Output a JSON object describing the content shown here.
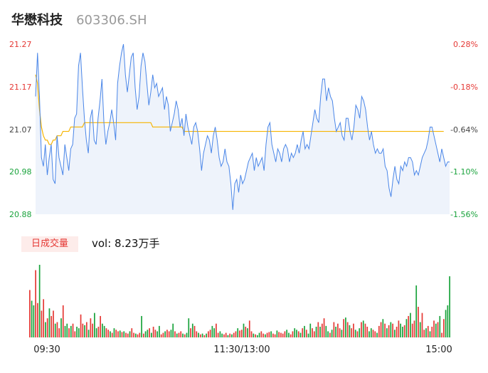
{
  "header": {
    "name": "华懋科技",
    "code": "603306.SH"
  },
  "volume": {
    "tab_label": "日成交量",
    "vol_text": "vol: 8.23万手"
  },
  "colors": {
    "price_line": "#4a86e8",
    "avg_line": "#f6b400",
    "up": "#e53935",
    "down": "#1aa33c",
    "fill": "#eef3fb"
  },
  "chart_data": {
    "type": "line",
    "price_axis": {
      "ticks": [
        21.27,
        21.17,
        21.07,
        20.98,
        20.88
      ],
      "min": 20.88,
      "max": 21.27
    },
    "pct_axis": {
      "ticks": [
        "0.28%",
        "-0.18%",
        "-0.64%",
        "-1.10%",
        "-1.56%"
      ]
    },
    "x_ticks": [
      "09:30",
      "11:30/13:00",
      "15:00"
    ],
    "series": [
      {
        "values": [
          21.15,
          21.25,
          21.15,
          21.01,
          20.99,
          21.04,
          20.97,
          21.01,
          21.04,
          20.96,
          20.95,
          21.06,
          21.01,
          20.99,
          20.97,
          21.04,
          21.01,
          20.98,
          21.03,
          21.04,
          21.1,
          21.11,
          21.22,
          21.25,
          21.17,
          21.1,
          21.05,
          21.02,
          21.1,
          21.12,
          21.05,
          21.04,
          21.1,
          21.14,
          21.19,
          21.09,
          21.04,
          21.07,
          21.09,
          21.12,
          21.09,
          21.05,
          21.18,
          21.22,
          21.25,
          21.27,
          21.2,
          21.16,
          21.2,
          21.24,
          21.25,
          21.17,
          21.12,
          21.15,
          21.22,
          21.25,
          21.23,
          21.18,
          21.13,
          21.16,
          21.2,
          21.17,
          21.18,
          21.15,
          21.16,
          21.17,
          21.12,
          21.15,
          21.13,
          21.07,
          21.09,
          21.11,
          21.14,
          21.12,
          21.08,
          21.1,
          21.06,
          21.11,
          21.08,
          21.06,
          21.04,
          21.08,
          21.09,
          21.07,
          21.03,
          20.98,
          21.02,
          21.04,
          21.06,
          21.05,
          21.02,
          21.06,
          21.08,
          21.05,
          21.01,
          20.99,
          21.0,
          21.03,
          21.0,
          20.99,
          20.95,
          20.89,
          20.95,
          20.96,
          20.93,
          20.97,
          20.95,
          20.96,
          20.98,
          21.0,
          21.01,
          21.02,
          20.98,
          21.01,
          20.99,
          21.0,
          21.01,
          20.98,
          21.04,
          21.08,
          21.09,
          21.04,
          21.02,
          21.0,
          21.03,
          21.02,
          21.0,
          21.03,
          21.04,
          21.03,
          21.0,
          21.02,
          21.01,
          21.02,
          21.04,
          21.02,
          21.05,
          21.07,
          21.03,
          21.04,
          21.03,
          21.06,
          21.09,
          21.12,
          21.1,
          21.09,
          21.15,
          21.19,
          21.19,
          21.14,
          21.17,
          21.15,
          21.14,
          21.1,
          21.07,
          21.08,
          21.09,
          21.06,
          21.05,
          21.1,
          21.1,
          21.07,
          21.05,
          21.08,
          21.13,
          21.12,
          21.1,
          21.15,
          21.14,
          21.12,
          21.08,
          21.05,
          21.07,
          21.04,
          21.02,
          21.03,
          21.02,
          21.02,
          21.03,
          20.99,
          20.98,
          20.94,
          20.92,
          20.96,
          20.99,
          20.96,
          20.95,
          20.99,
          20.98,
          21.0,
          20.99,
          21.01,
          21.01,
          21.0,
          20.97,
          20.98,
          20.97,
          20.99,
          21.01,
          21.02,
          21.03,
          21.05,
          21.08,
          21.08,
          21.06,
          21.04,
          21.02,
          21.0,
          21.03,
          21.01,
          20.99,
          21.0,
          21.0
        ]
      },
      {
        "values": [
          21.2,
          21.18,
          21.12,
          21.08,
          21.06,
          21.05,
          21.05,
          21.04,
          21.04,
          21.05,
          21.05,
          21.06,
          21.06,
          21.06,
          21.07,
          21.07,
          21.07,
          21.07,
          21.08,
          21.08,
          21.08,
          21.08,
          21.08,
          21.08,
          21.08,
          21.09,
          21.09,
          21.09,
          21.09,
          21.09,
          21.09,
          21.09,
          21.09,
          21.09,
          21.09,
          21.09,
          21.09,
          21.09,
          21.09,
          21.09,
          21.09,
          21.09,
          21.09,
          21.09,
          21.09,
          21.09,
          21.09,
          21.09,
          21.09,
          21.09,
          21.09,
          21.09,
          21.09,
          21.09,
          21.09,
          21.09,
          21.09,
          21.09,
          21.09,
          21.09,
          21.08,
          21.08,
          21.08,
          21.08,
          21.08,
          21.08,
          21.08,
          21.08,
          21.08,
          21.08,
          21.08,
          21.08,
          21.08,
          21.08,
          21.08,
          21.08,
          21.07,
          21.07,
          21.07,
          21.07,
          21.07,
          21.07,
          21.07,
          21.07,
          21.07,
          21.07,
          21.07,
          21.07,
          21.07,
          21.07,
          21.07,
          21.07,
          21.07,
          21.07,
          21.07,
          21.07,
          21.07,
          21.07,
          21.07,
          21.07,
          21.07,
          21.07,
          21.07,
          21.07,
          21.07,
          21.07,
          21.07,
          21.07,
          21.07,
          21.07,
          21.07,
          21.07,
          21.07,
          21.07,
          21.07,
          21.07,
          21.07,
          21.07,
          21.07,
          21.07,
          21.07,
          21.07,
          21.07,
          21.07,
          21.07,
          21.07,
          21.07,
          21.07,
          21.07,
          21.07,
          21.07,
          21.07,
          21.07,
          21.07,
          21.07,
          21.07,
          21.07,
          21.07,
          21.07,
          21.07,
          21.07,
          21.07,
          21.07,
          21.07,
          21.07,
          21.07,
          21.07,
          21.07,
          21.07,
          21.07,
          21.07,
          21.07,
          21.07,
          21.07,
          21.07,
          21.07,
          21.07,
          21.07,
          21.07,
          21.07,
          21.07,
          21.07,
          21.07,
          21.07,
          21.07,
          21.07,
          21.07,
          21.07,
          21.07,
          21.07,
          21.07,
          21.07,
          21.07,
          21.07,
          21.07,
          21.07,
          21.07,
          21.07,
          21.07,
          21.07,
          21.07,
          21.07,
          21.07,
          21.07,
          21.07,
          21.07,
          21.07,
          21.07,
          21.07,
          21.07,
          21.07,
          21.07,
          21.07,
          21.07,
          21.07,
          21.07,
          21.07,
          21.07,
          21.07,
          21.07,
          21.07,
          21.07,
          21.07,
          21.07,
          21.07,
          21.07,
          21.07,
          21.07,
          21.07,
          21.07
        ]
      }
    ],
    "volume": {
      "values": [
        62,
        48,
        42,
        88,
        45,
        95,
        35,
        50,
        20,
        25,
        38,
        28,
        35,
        18,
        20,
        12,
        25,
        42,
        15,
        18,
        12,
        15,
        18,
        8,
        14,
        12,
        30,
        18,
        16,
        20,
        10,
        25,
        18,
        32,
        12,
        14,
        28,
        18,
        15,
        12,
        10,
        8,
        6,
        12,
        10,
        8,
        9,
        7,
        8,
        6,
        5,
        8,
        12,
        6,
        5,
        4,
        6,
        28,
        5,
        8,
        10,
        12,
        6,
        14,
        10,
        8,
        15,
        4,
        6,
        8,
        10,
        8,
        10,
        18,
        8,
        5,
        6,
        8,
        5,
        4,
        6,
        25,
        12,
        18,
        15,
        8,
        6,
        4,
        5,
        3,
        5,
        8,
        10,
        15,
        12,
        18,
        6,
        8,
        5,
        4,
        6,
        3,
        5,
        4,
        6,
        8,
        12,
        9,
        10,
        18,
        14,
        12,
        22,
        8,
        5,
        4,
        3,
        6,
        8,
        5,
        4,
        6,
        7,
        8,
        5,
        4,
        9,
        7,
        6,
        5,
        8,
        10,
        6,
        4,
        8,
        12,
        10,
        8,
        6,
        12,
        15,
        10,
        5,
        18,
        12,
        8,
        14,
        20,
        14,
        18,
        25,
        15,
        8,
        6,
        10,
        20,
        14,
        18,
        12,
        10,
        24,
        26,
        20,
        16,
        12,
        18,
        10,
        8,
        12,
        20,
        22,
        18,
        14,
        8,
        12,
        10,
        8,
        6,
        15,
        20,
        24,
        18,
        12,
        16,
        20,
        18,
        10,
        14,
        22,
        18,
        14,
        16,
        24,
        28,
        32,
        18,
        22,
        68,
        40,
        20,
        32,
        10,
        12,
        15,
        8,
        14,
        22,
        18,
        20,
        28,
        6,
        24,
        36,
        42,
        80
      ],
      "colors": [
        "up",
        "down",
        "down",
        "up",
        "up",
        "down",
        "up",
        "up",
        "down",
        "up",
        "down",
        "up",
        "up",
        "down",
        "up",
        "up",
        "down",
        "up",
        "down",
        "down",
        "up",
        "down",
        "up",
        "up",
        "down",
        "down",
        "up",
        "up",
        "down",
        "up",
        "down",
        "up",
        "up",
        "down",
        "down",
        "up",
        "up",
        "down",
        "down",
        "up",
        "up",
        "down",
        "up",
        "down",
        "up",
        "up",
        "down",
        "up",
        "down",
        "up",
        "up",
        "down",
        "up",
        "up",
        "down",
        "up",
        "up",
        "down",
        "up",
        "down",
        "down",
        "up",
        "down",
        "up",
        "up",
        "down",
        "down",
        "up",
        "up",
        "down",
        "up",
        "up",
        "down",
        "down",
        "up",
        "down",
        "up",
        "up",
        "down",
        "up",
        "down",
        "down",
        "up",
        "down",
        "up",
        "up",
        "down",
        "up",
        "down",
        "up",
        "down",
        "up",
        "up",
        "down",
        "down",
        "up",
        "up",
        "down",
        "down",
        "up",
        "up",
        "down",
        "up",
        "down",
        "up",
        "up",
        "down",
        "up",
        "up",
        "down",
        "up",
        "down",
        "up",
        "up",
        "down",
        "up",
        "down",
        "down",
        "up",
        "up",
        "down",
        "up",
        "up",
        "down",
        "up",
        "up",
        "down",
        "up",
        "up",
        "up",
        "up",
        "down",
        "down",
        "up",
        "up",
        "down",
        "down",
        "up",
        "down",
        "up",
        "down",
        "up",
        "down",
        "down",
        "up",
        "up",
        "down",
        "up",
        "down",
        "up",
        "up",
        "down",
        "down",
        "up",
        "down",
        "up",
        "down",
        "up",
        "up",
        "down",
        "up",
        "down",
        "up",
        "down",
        "up",
        "up",
        "down",
        "up",
        "down",
        "up",
        "down",
        "up",
        "up",
        "down",
        "down",
        "up",
        "up",
        "down",
        "up",
        "up",
        "down",
        "up",
        "down",
        "up",
        "down",
        "up",
        "down",
        "up",
        "up",
        "down",
        "down",
        "up",
        "down",
        "up",
        "down",
        "up",
        "up",
        "down",
        "up",
        "down",
        "up",
        "up",
        "down",
        "up",
        "down",
        "up",
        "up",
        "down",
        "up",
        "down",
        "up",
        "up",
        "down"
      ]
    }
  }
}
